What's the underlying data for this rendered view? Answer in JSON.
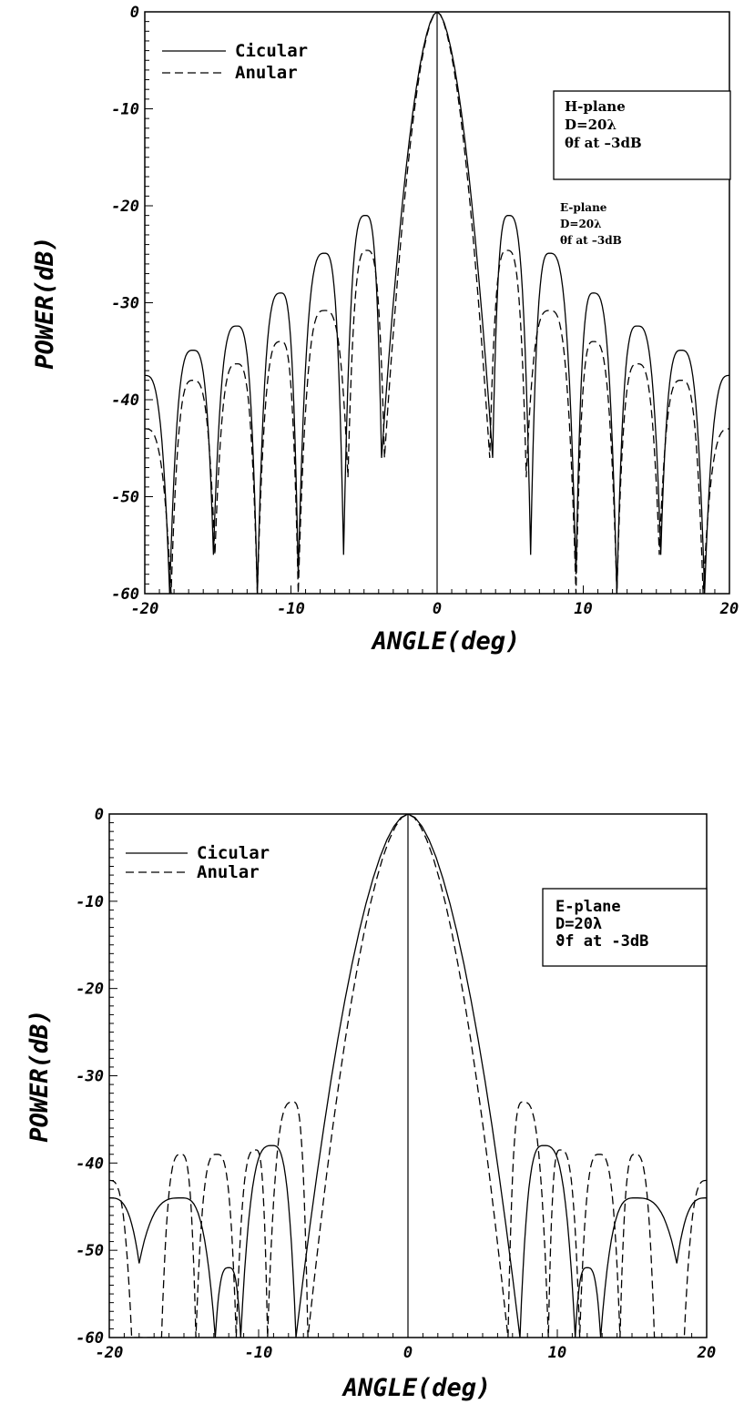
{
  "chart_data": [
    {
      "type": "line",
      "xlabel": "ANGLE(deg)",
      "ylabel": "POWER(dB)",
      "xlim": [
        -20,
        20
      ],
      "ylim": [
        -60,
        0
      ],
      "x_ticks": [
        "-20",
        "-10",
        "0",
        "10",
        "20"
      ],
      "y_ticks": [
        "0",
        "-10",
        "-20",
        "-30",
        "-40",
        "-50",
        "-60"
      ],
      "grid": false,
      "legend": {
        "placement": "top-left",
        "entries": [
          "Cicular",
          "Anular"
        ]
      },
      "annotation_box": [
        "H-plane",
        "D=20λ",
        "θf at –3dB"
      ],
      "annotation_free": [
        "E-plane",
        "D=20λ",
        "θf at –3dB"
      ],
      "series": [
        {
          "name": "Cicular",
          "style": "solid",
          "sidelobes": [
            {
              "x": 4.9,
              "y": -21.0
            },
            {
              "x": 7.7,
              "y": -24.9
            },
            {
              "x": 10.7,
              "y": -29.0
            },
            {
              "x": 13.7,
              "y": -32.4
            },
            {
              "x": 16.7,
              "y": -34.9
            },
            {
              "x": 20.0,
              "y": -37.5
            }
          ],
          "nulls": [
            {
              "x": 3.8,
              "y": -46.0
            },
            {
              "x": 6.4,
              "y": -56.0
            },
            {
              "x": 9.5,
              "y": -58.0
            },
            {
              "x": 12.3,
              "y": -60.0
            },
            {
              "x": 15.3,
              "y": -56.0
            },
            {
              "x": 18.3,
              "y": -60.0
            }
          ]
        },
        {
          "name": "Anular",
          "style": "dashed",
          "sidelobes": [
            {
              "x": 4.8,
              "y": -24.6
            },
            {
              "x": 7.7,
              "y": -30.8
            },
            {
              "x": 10.7,
              "y": -34.0
            },
            {
              "x": 13.7,
              "y": -36.3
            },
            {
              "x": 16.7,
              "y": -38.0
            },
            {
              "x": 20.0,
              "y": -43.0
            }
          ],
          "nulls": [
            {
              "x": 3.6,
              "y": -46.0
            },
            {
              "x": 6.1,
              "y": -48.0
            },
            {
              "x": 9.5,
              "y": -60.0
            },
            {
              "x": 12.3,
              "y": -60.0
            },
            {
              "x": 15.2,
              "y": -56.0
            },
            {
              "x": 18.2,
              "y": -60.0
            }
          ]
        }
      ]
    },
    {
      "type": "line",
      "xlabel": "ANGLE(deg)",
      "ylabel": "POWER(dB)",
      "xlim": [
        -20,
        20
      ],
      "ylim": [
        -60,
        0
      ],
      "x_ticks": [
        "-20",
        "-10",
        "0",
        "10",
        "20"
      ],
      "y_ticks": [
        "0",
        "-10",
        "-20",
        "-30",
        "-40",
        "-50",
        "-60"
      ],
      "grid": false,
      "legend": {
        "placement": "top-left",
        "entries": [
          "Cicular",
          "Anular"
        ]
      },
      "annotation_box": [
        "E-plane",
        "D=20λ",
        "ϑf at -3dB"
      ],
      "series": [
        {
          "name": "Cicular",
          "style": "solid",
          "sidelobes": [
            {
              "x": 9.1,
              "y": -38.0
            },
            {
              "x": 12.0,
              "y": -52.0
            },
            {
              "x": 15.2,
              "y": -44.0
            },
            {
              "x": 20.0,
              "y": -44.0
            }
          ],
          "nulls": [
            {
              "x": 7.5,
              "y": -60.0
            },
            {
              "x": 11.2,
              "y": -60.0
            },
            {
              "x": 12.9,
              "y": -60.0
            },
            {
              "x": 18.0,
              "y": -51.5
            }
          ]
        },
        {
          "name": "Anular",
          "style": "dashed",
          "sidelobes": [
            {
              "x": 7.7,
              "y": -33.0
            },
            {
              "x": 10.2,
              "y": -38.5
            },
            {
              "x": 12.8,
              "y": -39.0
            },
            {
              "x": 15.2,
              "y": -39.0
            },
            {
              "x": 20.0,
              "y": -42.0
            }
          ],
          "nulls": [
            {
              "x": 6.7,
              "y": -60.0
            },
            {
              "x": 9.4,
              "y": -60.0
            },
            {
              "x": 11.5,
              "y": -60.0
            },
            {
              "x": 14.2,
              "y": -60.0
            },
            {
              "x": 16.5,
              "y": -60.0
            },
            {
              "x": 18.5,
              "y": -60.0
            }
          ]
        }
      ]
    }
  ]
}
